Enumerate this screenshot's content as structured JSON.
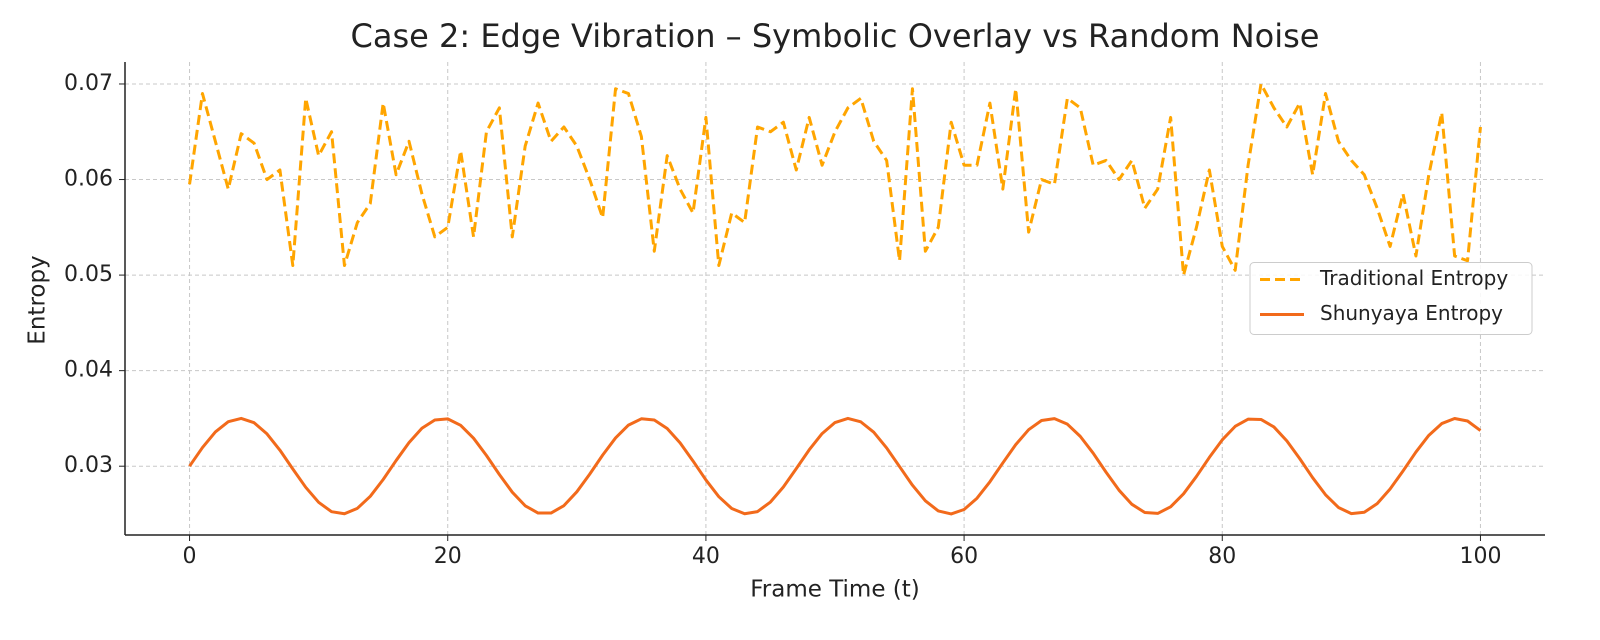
{
  "chart_data": {
    "type": "line",
    "title": "Case 2: Edge Vibration – Symbolic Overlay vs Random Noise",
    "xlabel": "Frame Time (t)",
    "ylabel": "Entropy",
    "x": [
      0,
      1,
      2,
      3,
      4,
      5,
      6,
      7,
      8,
      9,
      10,
      11,
      12,
      13,
      14,
      15,
      16,
      17,
      18,
      19,
      20,
      21,
      22,
      23,
      24,
      25,
      26,
      27,
      28,
      29,
      30,
      31,
      32,
      33,
      34,
      35,
      36,
      37,
      38,
      39,
      40,
      41,
      42,
      43,
      44,
      45,
      46,
      47,
      48,
      49,
      50,
      51,
      52,
      53,
      54,
      55,
      56,
      57,
      58,
      59,
      60,
      61,
      62,
      63,
      64,
      65,
      66,
      67,
      68,
      69,
      70,
      71,
      72,
      73,
      74,
      75,
      76,
      77,
      78,
      79,
      80,
      81,
      82,
      83,
      84,
      85,
      86,
      87,
      88,
      89,
      90,
      91,
      92,
      93,
      94,
      95,
      96,
      97,
      98,
      99,
      100
    ],
    "series": [
      {
        "name": "Traditional Entropy",
        "color": "#ffa500",
        "dash": true,
        "values": [
          0.0595,
          0.069,
          0.064,
          0.059,
          0.0648,
          0.0638,
          0.06,
          0.061,
          0.051,
          0.0685,
          0.0625,
          0.065,
          0.051,
          0.0555,
          0.0575,
          0.068,
          0.0605,
          0.064,
          0.0585,
          0.054,
          0.055,
          0.063,
          0.054,
          0.065,
          0.0675,
          0.054,
          0.0635,
          0.068,
          0.064,
          0.0655,
          0.0635,
          0.06,
          0.056,
          0.0695,
          0.069,
          0.0645,
          0.0525,
          0.0625,
          0.059,
          0.0565,
          0.0665,
          0.051,
          0.0565,
          0.0555,
          0.0655,
          0.065,
          0.066,
          0.061,
          0.0665,
          0.0615,
          0.065,
          0.0675,
          0.0685,
          0.064,
          0.062,
          0.0515,
          0.0695,
          0.0525,
          0.055,
          0.066,
          0.0615,
          0.0615,
          0.068,
          0.059,
          0.0695,
          0.0545,
          0.06,
          0.0595,
          0.0685,
          0.0675,
          0.0615,
          0.062,
          0.06,
          0.062,
          0.057,
          0.059,
          0.0665,
          0.05,
          0.055,
          0.061,
          0.053,
          0.0505,
          0.0615,
          0.07,
          0.0675,
          0.0655,
          0.068,
          0.0605,
          0.069,
          0.064,
          0.062,
          0.0605,
          0.057,
          0.053,
          0.0585,
          0.052,
          0.0605,
          0.067,
          0.052,
          0.0515,
          0.0655
        ]
      },
      {
        "name": "Shunyaya Entropy",
        "color": "#f26a1b",
        "dash": false,
        "values": [
          0.03,
          0.03195,
          0.03359,
          0.03466,
          0.035,
          0.03455,
          0.03338,
          0.03168,
          0.02971,
          0.02779,
          0.02622,
          0.02524,
          0.02502,
          0.02559,
          0.02685,
          0.02861,
          0.03059,
          0.03247,
          0.03397,
          0.03484,
          0.03495,
          0.03428,
          0.03293,
          0.03112,
          0.02913,
          0.02728,
          0.02586,
          0.0251,
          0.0251,
          0.02587,
          0.02732,
          0.02917,
          0.03116,
          0.03296,
          0.0343,
          0.03496,
          0.03483,
          0.03395,
          0.03244,
          0.03055,
          0.02856,
          0.02681,
          0.02557,
          0.02502,
          0.02525,
          0.02625,
          0.02782,
          0.02975,
          0.03171,
          0.03341,
          0.03457,
          0.035,
          0.03464,
          0.03356,
          0.03191,
          0.02996,
          0.02801,
          0.02638,
          0.02532,
          0.025,
          0.02547,
          0.02665,
          0.02837,
          0.03034,
          0.03226,
          0.03382,
          0.03478,
          0.03498,
          0.0344,
          0.03312,
          0.03136,
          0.02937,
          0.02749,
          0.02601,
          0.02515,
          0.02506,
          0.02575,
          0.02711,
          0.02893,
          0.03092,
          0.03276,
          0.03417,
          0.03492,
          0.03489,
          0.03411,
          0.03265,
          0.03079,
          0.0288,
          0.02701,
          0.02568,
          0.02504,
          0.02518,
          0.02608,
          0.02761,
          0.0295,
          0.03148,
          0.03323,
          0.03446,
          0.03499,
          0.03473,
          0.03373
        ]
      }
    ],
    "xlim": [
      -5,
      105
    ],
    "xticks": [
      0,
      20,
      40,
      60,
      80,
      100
    ],
    "ylim": [
      0.0228,
      0.0723
    ],
    "yticks": [
      0.03,
      0.04,
      0.05,
      0.06,
      0.07
    ],
    "grid": true,
    "legend": "center right"
  }
}
